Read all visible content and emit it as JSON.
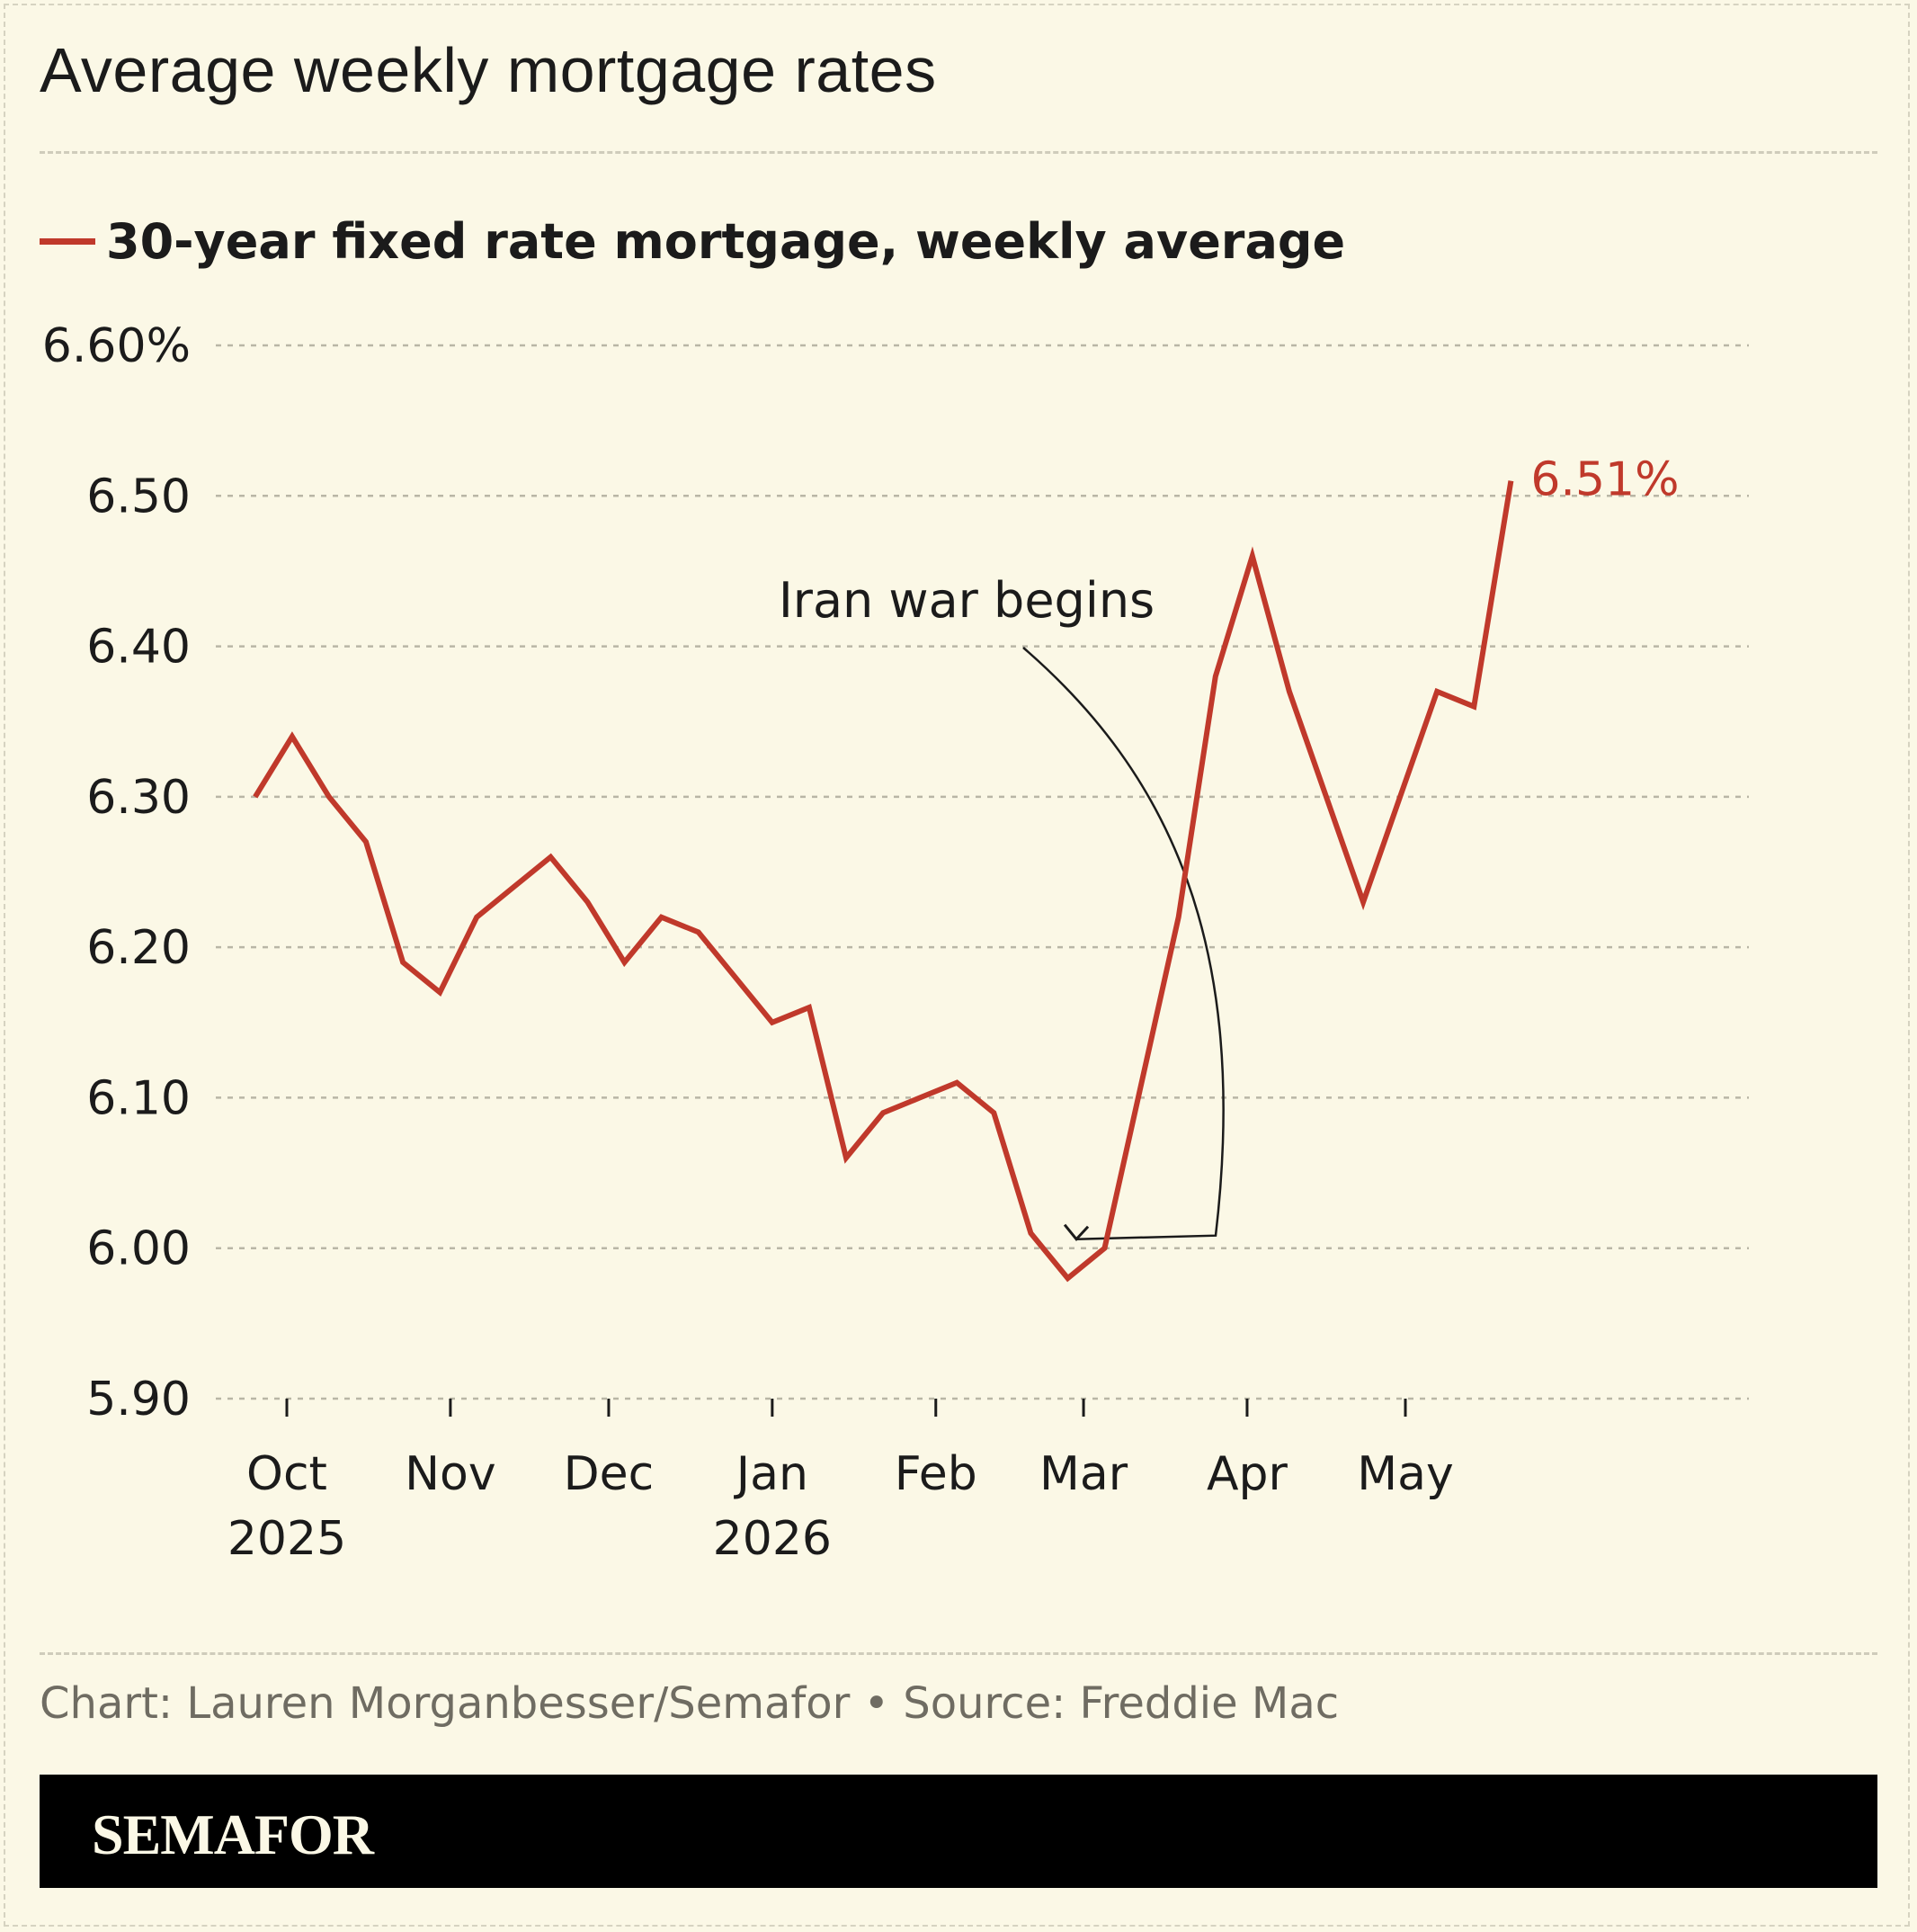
{
  "title": "Average weekly mortgage rates",
  "credit": "Chart: Lauren Morganbesser/Semafor • Source: Freddie Mac",
  "brand": "SEMAFOR",
  "colors": {
    "background": "#fbf8e6",
    "series": "#c0392b",
    "text": "#1b1b1b",
    "muted": "#6f6c62"
  },
  "chart_data": {
    "type": "line",
    "ylim": [
      5.9,
      6.6
    ],
    "y_ticks": [
      {
        "value": 6.6,
        "label": "6.60%"
      },
      {
        "value": 6.5,
        "label": "6.50"
      },
      {
        "value": 6.4,
        "label": "6.40"
      },
      {
        "value": 6.3,
        "label": "6.30"
      },
      {
        "value": 6.2,
        "label": "6.20"
      },
      {
        "value": 6.1,
        "label": "6.10"
      },
      {
        "value": 6.0,
        "label": "6.00"
      },
      {
        "value": 5.9,
        "label": "5.90"
      }
    ],
    "x_ticks": [
      {
        "date": "2025-10-01",
        "label": "Oct",
        "year": "2025"
      },
      {
        "date": "2025-11-01",
        "label": "Nov",
        "year": ""
      },
      {
        "date": "2025-12-01",
        "label": "Dec",
        "year": ""
      },
      {
        "date": "2026-01-01",
        "label": "Jan",
        "year": "2026"
      },
      {
        "date": "2026-02-01",
        "label": "Feb",
        "year": ""
      },
      {
        "date": "2026-03-01",
        "label": "Mar",
        "year": ""
      },
      {
        "date": "2026-04-01",
        "label": "Apr",
        "year": ""
      },
      {
        "date": "2026-05-01",
        "label": "May",
        "year": ""
      }
    ],
    "grid": true,
    "legend": "top-left",
    "series": [
      {
        "name": "30-year fixed rate mortgage, weekly average",
        "color": "#c0392b",
        "end_label": "6.51%",
        "points": [
          {
            "x": "2025-09-25",
            "y": 6.3
          },
          {
            "x": "2025-10-02",
            "y": 6.34
          },
          {
            "x": "2025-10-09",
            "y": 6.3
          },
          {
            "x": "2025-10-16",
            "y": 6.27
          },
          {
            "x": "2025-10-23",
            "y": 6.19
          },
          {
            "x": "2025-10-30",
            "y": 6.17
          },
          {
            "x": "2025-11-06",
            "y": 6.22
          },
          {
            "x": "2025-11-13",
            "y": 6.24
          },
          {
            "x": "2025-11-20",
            "y": 6.26
          },
          {
            "x": "2025-11-27",
            "y": 6.23
          },
          {
            "x": "2025-12-04",
            "y": 6.19
          },
          {
            "x": "2025-12-11",
            "y": 6.22
          },
          {
            "x": "2025-12-18",
            "y": 6.21
          },
          {
            "x": "2025-12-25",
            "y": 6.18
          },
          {
            "x": "2026-01-01",
            "y": 6.15
          },
          {
            "x": "2026-01-08",
            "y": 6.16
          },
          {
            "x": "2026-01-15",
            "y": 6.06
          },
          {
            "x": "2026-01-22",
            "y": 6.09
          },
          {
            "x": "2026-01-29",
            "y": 6.1
          },
          {
            "x": "2026-02-05",
            "y": 6.11
          },
          {
            "x": "2026-02-12",
            "y": 6.09
          },
          {
            "x": "2026-02-19",
            "y": 6.01
          },
          {
            "x": "2026-02-26",
            "y": 5.98
          },
          {
            "x": "2026-03-05",
            "y": 6.0
          },
          {
            "x": "2026-03-12",
            "y": 6.11
          },
          {
            "x": "2026-03-19",
            "y": 6.22
          },
          {
            "x": "2026-03-26",
            "y": 6.38
          },
          {
            "x": "2026-04-02",
            "y": 6.46
          },
          {
            "x": "2026-04-09",
            "y": 6.37
          },
          {
            "x": "2026-04-16",
            "y": 6.3
          },
          {
            "x": "2026-04-23",
            "y": 6.23
          },
          {
            "x": "2026-04-30",
            "y": 6.3
          },
          {
            "x": "2026-05-07",
            "y": 6.37
          },
          {
            "x": "2026-05-14",
            "y": 6.36
          },
          {
            "x": "2026-05-21",
            "y": 6.51
          }
        ]
      }
    ],
    "annotations": [
      {
        "text": "Iran war begins",
        "target": {
          "x": "2026-03-01",
          "y": 6.0
        }
      }
    ]
  }
}
